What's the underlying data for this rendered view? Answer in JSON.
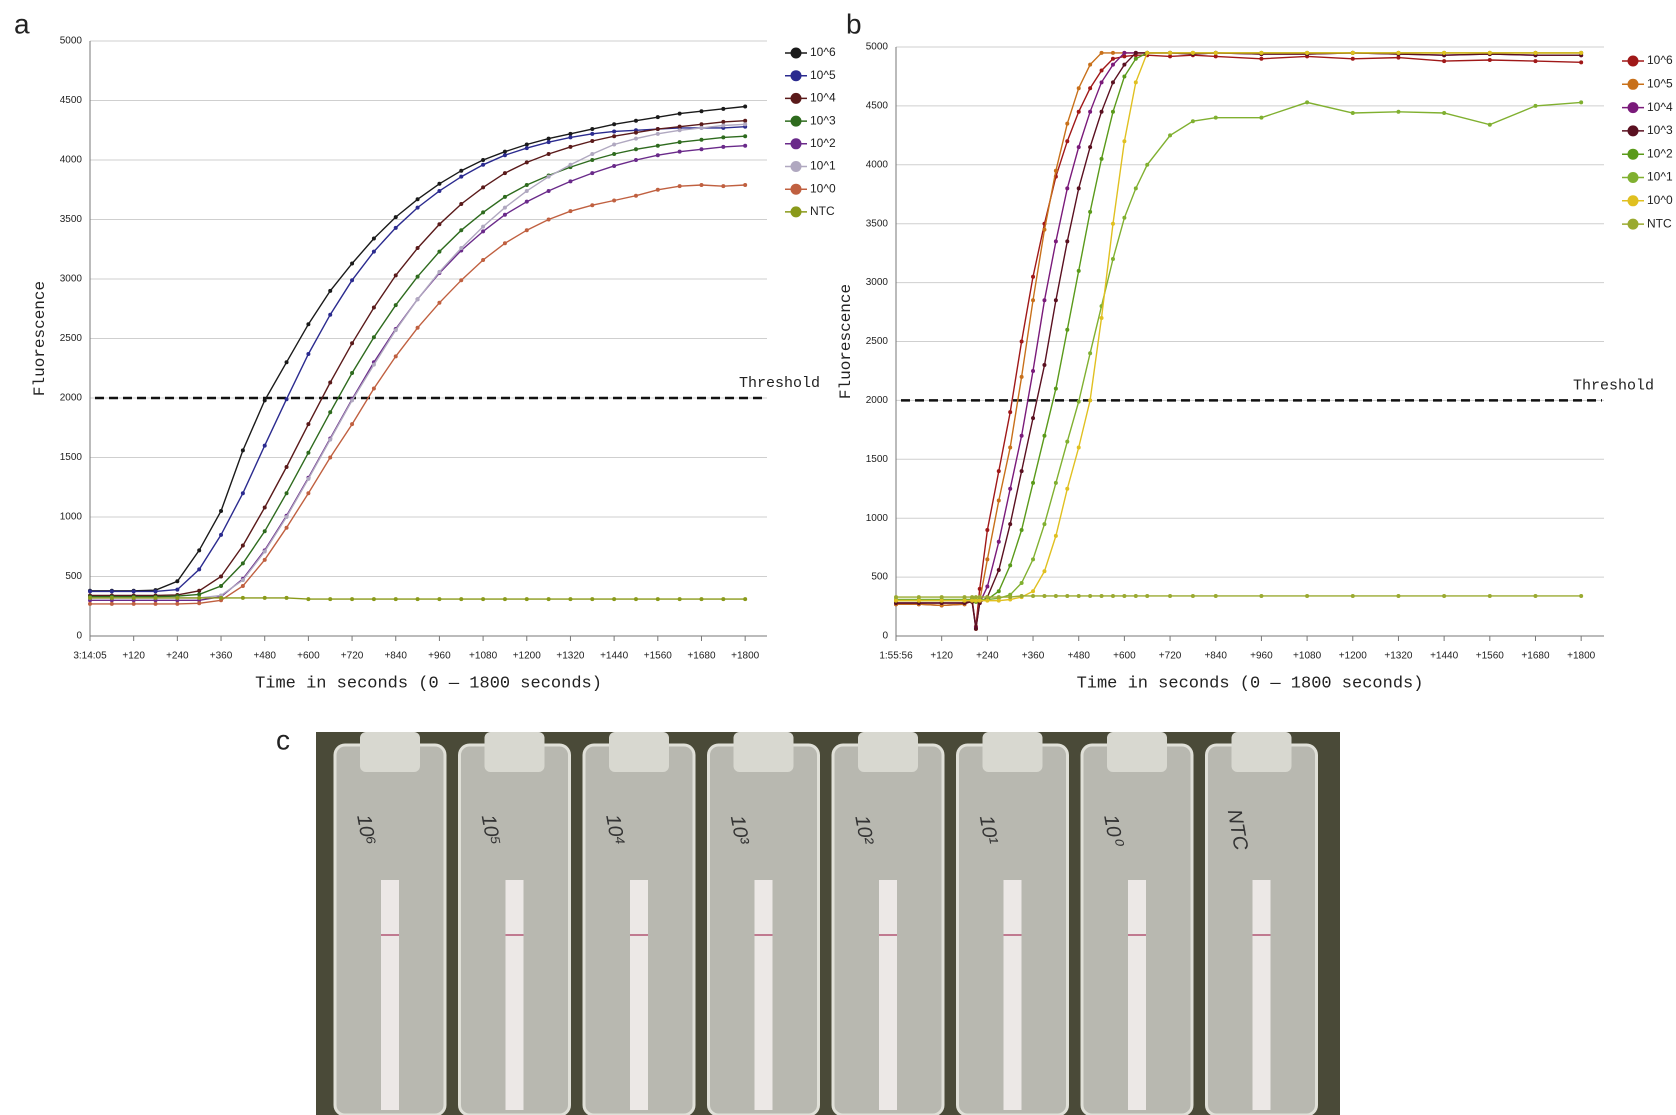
{
  "panel_labels": [
    "a",
    "b",
    "c"
  ],
  "photo": {
    "tube_labels": [
      "10⁶",
      "10⁵",
      "10⁴",
      "10³",
      "10²",
      "10¹",
      "10⁰",
      "NTC"
    ]
  },
  "chart_data": [
    {
      "type": "line",
      "x_label": "Time in seconds (0 — 1800 seconds)",
      "y_label": "Fluorescence",
      "xlim": [
        0,
        1860
      ],
      "ylim": [
        0,
        5000
      ],
      "grid": true,
      "legend": "right",
      "threshold": {
        "value": 2000,
        "label": "Threshold"
      },
      "yticks": [
        0,
        500,
        1000,
        1500,
        2000,
        2500,
        3000,
        3500,
        4000,
        4500,
        5000
      ],
      "xticks": [
        {
          "value": 0,
          "label": "3:14:05"
        },
        {
          "value": 120,
          "label": "+120"
        },
        {
          "value": 240,
          "label": "+240"
        },
        {
          "value": 360,
          "label": "+360"
        },
        {
          "value": 480,
          "label": "+480"
        },
        {
          "value": 600,
          "label": "+600"
        },
        {
          "value": 720,
          "label": "+720"
        },
        {
          "value": 840,
          "label": "+840"
        },
        {
          "value": 960,
          "label": "+960"
        },
        {
          "value": 1080,
          "label": "+1080"
        },
        {
          "value": 1200,
          "label": "+1200"
        },
        {
          "value": 1320,
          "label": "+1320"
        },
        {
          "value": 1440,
          "label": "+1440"
        },
        {
          "value": 1560,
          "label": "+1560"
        },
        {
          "value": 1680,
          "label": "+1680"
        },
        {
          "value": 1800,
          "label": "+1800"
        }
      ],
      "x": [
        0,
        60,
        120,
        180,
        240,
        300,
        360,
        420,
        480,
        540,
        600,
        660,
        720,
        780,
        840,
        900,
        960,
        1020,
        1080,
        1140,
        1200,
        1260,
        1320,
        1380,
        1440,
        1500,
        1560,
        1620,
        1680,
        1740,
        1800
      ],
      "series": [
        {
          "name": "10^6",
          "color": "#1a1a1a",
          "values": [
            380,
            380,
            380,
            385,
            460,
            720,
            1050,
            1560,
            1980,
            2300,
            2620,
            2900,
            3130,
            3340,
            3520,
            3670,
            3800,
            3910,
            4000,
            4070,
            4130,
            4180,
            4220,
            4260,
            4300,
            4330,
            4360,
            4390,
            4410,
            4430,
            4450
          ]
        },
        {
          "name": "10^5",
          "color": "#2b2b8f",
          "values": [
            375,
            375,
            375,
            375,
            390,
            560,
            850,
            1200,
            1600,
            1990,
            2370,
            2700,
            2990,
            3230,
            3430,
            3600,
            3740,
            3860,
            3960,
            4040,
            4100,
            4150,
            4190,
            4220,
            4240,
            4250,
            4260,
            4270,
            4270,
            4270,
            4280
          ]
        },
        {
          "name": "10^4",
          "color": "#5a1a1a",
          "values": [
            340,
            340,
            340,
            340,
            345,
            380,
            500,
            760,
            1080,
            1420,
            1780,
            2130,
            2460,
            2760,
            3030,
            3260,
            3460,
            3630,
            3770,
            3890,
            3980,
            4050,
            4110,
            4160,
            4200,
            4230,
            4260,
            4280,
            4300,
            4320,
            4330
          ]
        },
        {
          "name": "10^3",
          "color": "#2e6b1e",
          "values": [
            330,
            330,
            330,
            330,
            335,
            350,
            420,
            610,
            880,
            1200,
            1540,
            1880,
            2210,
            2510,
            2780,
            3020,
            3230,
            3410,
            3560,
            3690,
            3790,
            3870,
            3940,
            4000,
            4050,
            4090,
            4120,
            4150,
            4170,
            4190,
            4200
          ]
        },
        {
          "name": "10^2",
          "color": "#6a2a8a",
          "values": [
            300,
            300,
            300,
            300,
            300,
            300,
            330,
            480,
            720,
            1010,
            1330,
            1660,
            1990,
            2300,
            2580,
            2830,
            3050,
            3240,
            3400,
            3540,
            3650,
            3740,
            3820,
            3890,
            3950,
            4000,
            4040,
            4070,
            4090,
            4110,
            4120
          ]
        },
        {
          "name": "10^1",
          "color": "#b0a8c0",
          "values": [
            320,
            320,
            320,
            320,
            320,
            320,
            340,
            470,
            710,
            1000,
            1320,
            1650,
            1980,
            2280,
            2570,
            2830,
            3060,
            3260,
            3440,
            3600,
            3740,
            3860,
            3960,
            4050,
            4130,
            4180,
            4220,
            4250,
            4270,
            4290,
            4300
          ]
        },
        {
          "name": "10^0",
          "color": "#c06040",
          "values": [
            270,
            270,
            270,
            270,
            270,
            275,
            300,
            420,
            640,
            910,
            1200,
            1500,
            1780,
            2080,
            2350,
            2590,
            2800,
            2990,
            3160,
            3300,
            3410,
            3500,
            3570,
            3620,
            3660,
            3700,
            3750,
            3780,
            3790,
            3780,
            3790
          ]
        },
        {
          "name": "NTC",
          "color": "#8a9a1a",
          "values": [
            320,
            320,
            320,
            320,
            320,
            320,
            320,
            320,
            320,
            320,
            310,
            310,
            310,
            310,
            310,
            310,
            310,
            310,
            310,
            310,
            310,
            310,
            310,
            310,
            310,
            310,
            310,
            310,
            310,
            310,
            310
          ]
        }
      ]
    },
    {
      "type": "line",
      "x_label": "Time in seconds (0 — 1800 seconds)",
      "y_label": "Fluorescence",
      "xlim": [
        0,
        1860
      ],
      "ylim": [
        0,
        5000
      ],
      "grid": true,
      "legend": "right",
      "threshold": {
        "value": 2000,
        "label": "Threshold"
      },
      "yticks": [
        0,
        500,
        1000,
        1500,
        2000,
        2500,
        3000,
        3500,
        4000,
        4500,
        5000
      ],
      "xticks": [
        {
          "value": 0,
          "label": "1:55:56"
        },
        {
          "value": 120,
          "label": "+120"
        },
        {
          "value": 240,
          "label": "+240"
        },
        {
          "value": 360,
          "label": "+360"
        },
        {
          "value": 480,
          "label": "+480"
        },
        {
          "value": 600,
          "label": "+600"
        },
        {
          "value": 720,
          "label": "+720"
        },
        {
          "value": 840,
          "label": "+840"
        },
        {
          "value": 960,
          "label": "+960"
        },
        {
          "value": 1080,
          "label": "+1080"
        },
        {
          "value": 1200,
          "label": "+1200"
        },
        {
          "value": 1320,
          "label": "+1320"
        },
        {
          "value": 1440,
          "label": "+1440"
        },
        {
          "value": 1560,
          "label": "+1560"
        },
        {
          "value": 1680,
          "label": "+1680"
        },
        {
          "value": 1800,
          "label": "+1800"
        }
      ],
      "x": [
        0,
        60,
        120,
        180,
        200,
        210,
        220,
        240,
        270,
        300,
        330,
        360,
        390,
        420,
        450,
        480,
        510,
        540,
        570,
        600,
        630,
        660,
        720,
        780,
        840,
        960,
        1080,
        1200,
        1320,
        1440,
        1560,
        1680,
        1800
      ],
      "series": [
        {
          "name": "10^6",
          "color": "#a01818",
          "values": [
            270,
            270,
            260,
            270,
            300,
            80,
            400,
            900,
            1400,
            1900,
            2500,
            3050,
            3500,
            3900,
            4200,
            4450,
            4650,
            4800,
            4900,
            4920,
            4930,
            4930,
            4920,
            4930,
            4920,
            4900,
            4920,
            4900,
            4910,
            4880,
            4890,
            4880,
            4870
          ]
        },
        {
          "name": "10^5",
          "color": "#c8701a",
          "values": [
            270,
            270,
            260,
            270,
            320,
            60,
            300,
            650,
            1150,
            1600,
            2200,
            2850,
            3450,
            3950,
            4350,
            4650,
            4850,
            4950,
            4950,
            4950,
            4950,
            4950,
            4950,
            4950,
            4950,
            4950,
            4950,
            4950,
            4950,
            4950,
            4950,
            4950,
            4950
          ]
        },
        {
          "name": "10^4",
          "color": "#7a1a7a",
          "values": [
            280,
            280,
            280,
            280,
            300,
            70,
            280,
            420,
            800,
            1250,
            1700,
            2250,
            2850,
            3350,
            3800,
            4150,
            4450,
            4700,
            4850,
            4950,
            4950,
            4950,
            4950,
            4940,
            4950,
            4940,
            4940,
            4950,
            4940,
            4930,
            4940,
            4930,
            4930
          ]
        },
        {
          "name": "10^3",
          "color": "#5a1020",
          "values": [
            280,
            280,
            280,
            280,
            290,
            60,
            280,
            330,
            560,
            950,
            1400,
            1850,
            2300,
            2850,
            3350,
            3800,
            4150,
            4450,
            4700,
            4850,
            4950,
            4950,
            4950,
            4940,
            4950,
            4940,
            4940,
            4950,
            4940,
            4930,
            4940,
            4930,
            4930
          ]
        },
        {
          "name": "10^2",
          "color": "#5a9a1a",
          "values": [
            300,
            300,
            300,
            300,
            300,
            290,
            300,
            310,
            380,
            600,
            900,
            1300,
            1700,
            2100,
            2600,
            3100,
            3600,
            4050,
            4450,
            4750,
            4900,
            4950,
            4950,
            4950,
            4950,
            4950,
            4950,
            4950,
            4950,
            4950,
            4950,
            4950,
            4950
          ]
        },
        {
          "name": "10^1",
          "color": "#80b030",
          "values": [
            310,
            310,
            310,
            310,
            310,
            310,
            310,
            310,
            320,
            350,
            450,
            650,
            950,
            1300,
            1650,
            1990,
            2400,
            2800,
            3200,
            3550,
            3800,
            4000,
            4250,
            4370,
            4400,
            4400,
            4530,
            4440,
            4450,
            4440,
            4340,
            4500,
            4530
          ]
        },
        {
          "name": "10^0",
          "color": "#e0c020",
          "values": [
            300,
            300,
            300,
            300,
            300,
            300,
            300,
            300,
            300,
            310,
            330,
            380,
            550,
            850,
            1250,
            1600,
            2000,
            2700,
            3500,
            4200,
            4700,
            4950,
            4950,
            4950,
            4950,
            4950,
            4950,
            4950,
            4950,
            4950,
            4950,
            4950,
            4950
          ]
        },
        {
          "name": "NTC",
          "color": "#9aaa30",
          "values": [
            330,
            330,
            330,
            330,
            330,
            330,
            330,
            330,
            330,
            330,
            340,
            340,
            340,
            340,
            340,
            340,
            340,
            340,
            340,
            340,
            340,
            340,
            340,
            340,
            340,
            340,
            340,
            340,
            340,
            340,
            340,
            340,
            340
          ]
        }
      ]
    }
  ]
}
